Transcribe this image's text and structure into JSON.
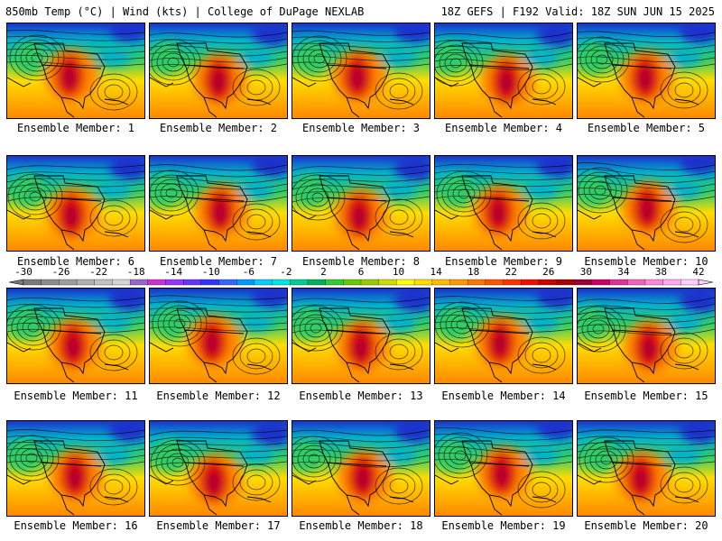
{
  "header": {
    "left": "850mb Temp (°C) | Wind (kts) | College of DuPage NEXLAB",
    "right": "18Z GEFS | F192 Valid: 18Z SUN JUN 15 2025"
  },
  "caption_prefix": "Ensemble Member:",
  "members": [
    1,
    2,
    3,
    4,
    5,
    6,
    7,
    8,
    9,
    10,
    11,
    12,
    13,
    14,
    15,
    16,
    17,
    18,
    19,
    20
  ],
  "colorbar": {
    "labels": [
      "-30",
      "-26",
      "-22",
      "-18",
      "-14",
      "-10",
      "-6",
      "-2",
      "2",
      "6",
      "10",
      "14",
      "18",
      "22",
      "26",
      "30",
      "34",
      "38",
      "42"
    ],
    "colors": [
      "#7a7a7a",
      "#8c8c8c",
      "#9e9e9e",
      "#b0b0b0",
      "#c2c2c2",
      "#d4d4d4",
      "#9a66cc",
      "#cc33cc",
      "#9933ff",
      "#6633ff",
      "#3333ff",
      "#3366ff",
      "#0099ff",
      "#00ccff",
      "#00e6e6",
      "#00cc99",
      "#00b359",
      "#33cc33",
      "#66cc00",
      "#99cc00",
      "#ccdd00",
      "#ffff00",
      "#ffdd00",
      "#ffbb00",
      "#ff9900",
      "#ff7700",
      "#ff5500",
      "#ff3300",
      "#ee1100",
      "#cc0000",
      "#aa0000",
      "#990033",
      "#cc0066",
      "#dd3399",
      "#ee66bb",
      "#ff88dd",
      "#ffaaee",
      "#ffccff"
    ]
  },
  "field_colors": {
    "cold": "#1a33cc",
    "cool": "#00b3cc",
    "mild": "#33cc66",
    "warm": "#ffdd00",
    "hot": "#ff8800",
    "veryhot": "#dd1100",
    "extreme": "#aa0033"
  }
}
